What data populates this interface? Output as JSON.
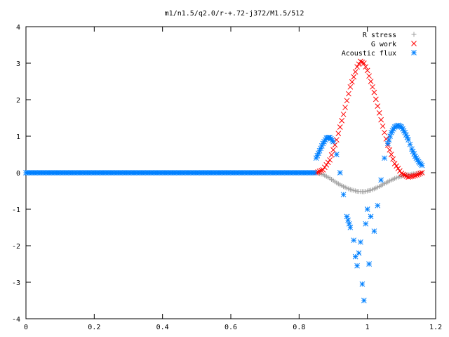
{
  "chart_data": {
    "type": "scatter",
    "title": "m1/n1.5/q2.0/r-+.72-j372/M1.5/512",
    "xlabel": "",
    "ylabel": "",
    "xlim": [
      0,
      1.2
    ],
    "ylim": [
      -4,
      4
    ],
    "x_ticks": [
      "0",
      "0.2",
      "0.4",
      "0.6",
      "0.8",
      "1",
      "1.2"
    ],
    "y_ticks": [
      "4",
      "3",
      "2",
      "1",
      "0",
      "-1",
      "-2",
      "-3",
      "-4"
    ],
    "grid": false,
    "legend_position": "top-right",
    "series": [
      {
        "name": "R stress",
        "marker": "+",
        "color": "#a0a0a0",
        "points": [
          [
            0.85,
            0.0
          ],
          [
            0.87,
            -0.05
          ],
          [
            0.89,
            -0.15
          ],
          [
            0.91,
            -0.28
          ],
          [
            0.93,
            -0.38
          ],
          [
            0.95,
            -0.46
          ],
          [
            0.97,
            -0.51
          ],
          [
            0.99,
            -0.52
          ],
          [
            1.01,
            -0.48
          ],
          [
            1.03,
            -0.4
          ],
          [
            1.05,
            -0.3
          ],
          [
            1.07,
            -0.2
          ],
          [
            1.09,
            -0.12
          ],
          [
            1.11,
            -0.07
          ],
          [
            1.13,
            -0.04
          ],
          [
            1.15,
            -0.02
          ],
          [
            1.16,
            0.0
          ]
        ]
      },
      {
        "name": "G work",
        "marker": "x",
        "color": "#ff0000",
        "points": [
          [
            0.85,
            0.0
          ],
          [
            0.87,
            0.08
          ],
          [
            0.89,
            0.35
          ],
          [
            0.91,
            0.9
          ],
          [
            0.93,
            1.6
          ],
          [
            0.95,
            2.35
          ],
          [
            0.97,
            2.9
          ],
          [
            0.98,
            3.05
          ],
          [
            0.99,
            3.0
          ],
          [
            1.0,
            2.8
          ],
          [
            1.02,
            2.2
          ],
          [
            1.04,
            1.45
          ],
          [
            1.06,
            0.75
          ],
          [
            1.08,
            0.25
          ],
          [
            1.1,
            -0.02
          ],
          [
            1.12,
            -0.12
          ],
          [
            1.14,
            -0.08
          ],
          [
            1.16,
            0.0
          ]
        ]
      },
      {
        "name": "Acoustic flux",
        "marker": "*",
        "color": "#0080ff",
        "baseline": {
          "x_from": 0.0,
          "x_to": 0.848,
          "y": 0.0
        },
        "points": [
          [
            0.85,
            0.4
          ],
          [
            0.86,
            0.6
          ],
          [
            0.87,
            0.8
          ],
          [
            0.88,
            0.95
          ],
          [
            0.89,
            0.97
          ],
          [
            0.9,
            0.85
          ],
          [
            0.91,
            0.5
          ],
          [
            0.92,
            0.0
          ],
          [
            0.93,
            -0.6
          ],
          [
            0.94,
            -1.2
          ],
          [
            0.95,
            -1.5
          ],
          [
            0.96,
            -1.85
          ],
          [
            0.965,
            -2.3
          ],
          [
            0.97,
            -2.55
          ],
          [
            0.975,
            -2.2
          ],
          [
            0.98,
            -1.9
          ],
          [
            0.985,
            -3.05
          ],
          [
            0.99,
            -3.5
          ],
          [
            0.995,
            -1.4
          ],
          [
            1.0,
            -1.0
          ],
          [
            1.005,
            -2.5
          ],
          [
            1.01,
            -1.2
          ],
          [
            1.02,
            -1.6
          ],
          [
            1.03,
            -0.9
          ],
          [
            1.04,
            -0.2
          ],
          [
            1.05,
            0.4
          ],
          [
            1.06,
            0.8
          ],
          [
            1.07,
            1.1
          ],
          [
            1.08,
            1.25
          ],
          [
            1.09,
            1.3
          ],
          [
            1.1,
            1.25
          ],
          [
            1.11,
            1.1
          ],
          [
            1.12,
            0.9
          ],
          [
            1.13,
            0.65
          ],
          [
            1.14,
            0.45
          ],
          [
            1.15,
            0.3
          ],
          [
            1.16,
            0.2
          ]
        ]
      }
    ]
  }
}
